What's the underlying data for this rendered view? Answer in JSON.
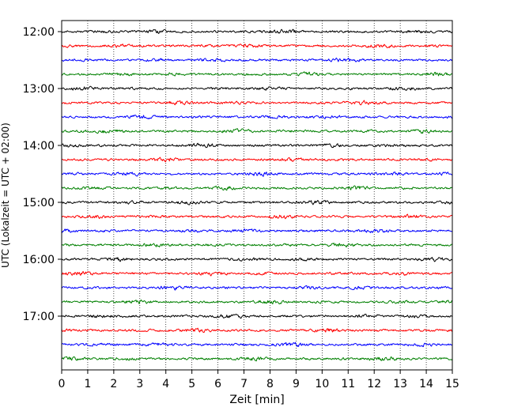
{
  "chart_data": {
    "type": "line",
    "title": "",
    "xlabel": "Zeit  [min]",
    "ylabel": "UTC (Lokalzeit = UTC + 02:00)",
    "xlim": [
      0,
      15
    ],
    "x_ticks": [
      "0",
      "1",
      "2",
      "3",
      "4",
      "5",
      "6",
      "7",
      "8",
      "9",
      "10",
      "11",
      "12",
      "13",
      "14",
      "15"
    ],
    "y_ticks": [
      "12:00",
      "13:00",
      "14:00",
      "15:00",
      "16:00",
      "17:00"
    ],
    "grid": "vertical dotted",
    "trace_interval_minutes": 15,
    "trace_colors": [
      "#000000",
      "#ff0000",
      "#0000ff",
      "#008000"
    ],
    "traces": [
      {
        "start": "12:00",
        "color": "#000000"
      },
      {
        "start": "12:15",
        "color": "#ff0000"
      },
      {
        "start": "12:30",
        "color": "#0000ff"
      },
      {
        "start": "12:45",
        "color": "#008000"
      },
      {
        "start": "13:00",
        "color": "#000000"
      },
      {
        "start": "13:15",
        "color": "#ff0000"
      },
      {
        "start": "13:30",
        "color": "#0000ff"
      },
      {
        "start": "13:45",
        "color": "#008000"
      },
      {
        "start": "14:00",
        "color": "#000000"
      },
      {
        "start": "14:15",
        "color": "#ff0000"
      },
      {
        "start": "14:30",
        "color": "#0000ff"
      },
      {
        "start": "14:45",
        "color": "#008000"
      },
      {
        "start": "15:00",
        "color": "#000000"
      },
      {
        "start": "15:15",
        "color": "#ff0000"
      },
      {
        "start": "15:30",
        "color": "#0000ff"
      },
      {
        "start": "15:45",
        "color": "#008000"
      },
      {
        "start": "16:00",
        "color": "#000000"
      },
      {
        "start": "16:15",
        "color": "#ff0000"
      },
      {
        "start": "16:30",
        "color": "#0000ff"
      },
      {
        "start": "16:45",
        "color": "#008000"
      },
      {
        "start": "17:00",
        "color": "#000000"
      },
      {
        "start": "17:15",
        "color": "#ff0000"
      },
      {
        "start": "17:30",
        "color": "#0000ff"
      },
      {
        "start": "17:45",
        "color": "#008000"
      }
    ]
  }
}
